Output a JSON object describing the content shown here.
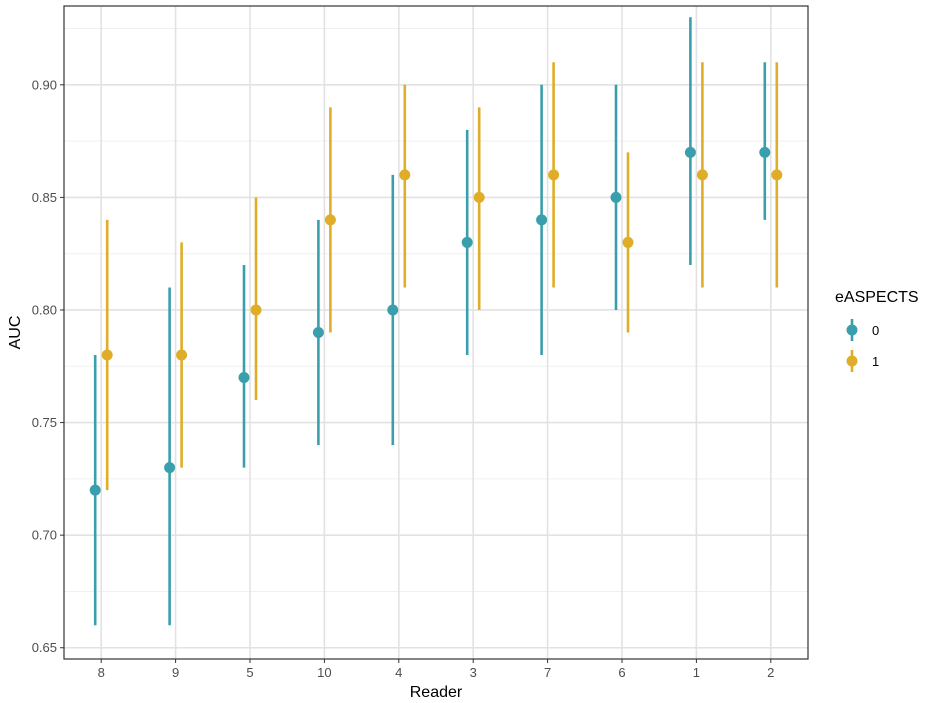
{
  "chart_data": {
    "type": "scatter",
    "xlabel": "Reader",
    "ylabel": "AUC",
    "categories": [
      "8",
      "9",
      "5",
      "10",
      "4",
      "3",
      "7",
      "6",
      "1",
      "2"
    ],
    "ylim": [
      0.645,
      0.935
    ],
    "yticks": [
      0.65,
      0.7,
      0.75,
      0.8,
      0.85,
      0.9
    ],
    "ytick_labels": [
      "0.65",
      "0.70",
      "0.75",
      "0.80",
      "0.85",
      "0.90"
    ],
    "grid": true,
    "legend": {
      "title": "eASPECTS",
      "position": "right"
    },
    "series": [
      {
        "name": "0",
        "color": "#3a9fad",
        "values": [
          0.72,
          0.73,
          0.77,
          0.79,
          0.8,
          0.83,
          0.84,
          0.85,
          0.87,
          0.87
        ],
        "lower": [
          0.66,
          0.66,
          0.73,
          0.74,
          0.74,
          0.78,
          0.78,
          0.8,
          0.82,
          0.84
        ],
        "upper": [
          0.78,
          0.81,
          0.82,
          0.84,
          0.86,
          0.88,
          0.9,
          0.9,
          0.93,
          0.91
        ]
      },
      {
        "name": "1",
        "color": "#e0ad28",
        "values": [
          0.78,
          0.78,
          0.8,
          0.84,
          0.86,
          0.85,
          0.86,
          0.83,
          0.86,
          0.86
        ],
        "lower": [
          0.72,
          0.73,
          0.76,
          0.79,
          0.81,
          0.8,
          0.81,
          0.79,
          0.81,
          0.81
        ],
        "upper": [
          0.84,
          0.83,
          0.85,
          0.89,
          0.9,
          0.89,
          0.91,
          0.87,
          0.91,
          0.91
        ]
      }
    ]
  }
}
